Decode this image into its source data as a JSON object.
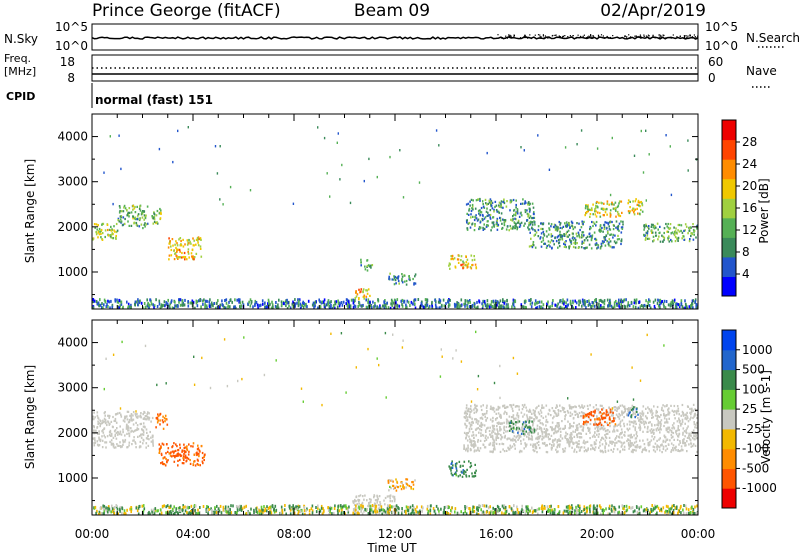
{
  "header": {
    "station": "Prince George (fitACF)",
    "beam": "Beam 09",
    "date": "02/Apr/2019"
  },
  "noise_panel": {
    "left_label": "N.Sky",
    "right_label": "N.Search",
    "ticks": [
      {
        "text": "10^5",
        "value": 100000
      },
      {
        "text": "10^0",
        "value": 1
      }
    ]
  },
  "freq_panel": {
    "left_label_line1": "Freq.",
    "left_label_line2": "[MHz]",
    "left_ticks": [
      18,
      8
    ],
    "right_label": "Nave",
    "right_ticks": [
      60,
      0
    ]
  },
  "cpid": {
    "label": "CPID",
    "text": "normal (fast) 151"
  },
  "colors": {
    "power_scale": [
      "#0000ff",
      "#2255cc",
      "#3a8a5a",
      "#55b055",
      "#a0d040",
      "#f0c800",
      "#ff8c00",
      "#ff4400",
      "#ee0000"
    ],
    "velocity_scale": [
      "#0044ee",
      "#2266cc",
      "#3a8a4a",
      "#66cc33",
      "#c8c8c0",
      "#f2b800",
      "#ff8c00",
      "#ff5500",
      "#ee0000"
    ]
  },
  "chart_data": [
    {
      "type": "heatmap",
      "name": "power",
      "ylabel": "Slant Range [km]",
      "ylim": [
        180,
        4500
      ],
      "yticks": [
        1000,
        2000,
        3000,
        4000
      ],
      "xlim": [
        0,
        24
      ],
      "colorbar": {
        "label": "Power [dB]",
        "range": [
          0,
          32
        ],
        "tick_labels": [
          "28",
          "24",
          "20",
          "16",
          "12",
          "8",
          "4"
        ],
        "tick_values": [
          28,
          24,
          20,
          16,
          12,
          8,
          4
        ]
      },
      "regions": [
        {
          "t0": 0.0,
          "t1": 1.0,
          "r0": 1680,
          "r1": 2050,
          "value": 16
        },
        {
          "t0": 1.0,
          "t1": 2.2,
          "r0": 1950,
          "r1": 2450,
          "value": 12
        },
        {
          "t0": 2.3,
          "t1": 2.7,
          "r0": 2050,
          "r1": 2400,
          "value": 14
        },
        {
          "t0": 3.0,
          "t1": 4.3,
          "r0": 1250,
          "r1": 1750,
          "value": 20
        },
        {
          "t0": 10.6,
          "t1": 11.1,
          "r0": 1000,
          "r1": 1250,
          "value": 10
        },
        {
          "t0": 11.7,
          "t1": 12.8,
          "r0": 700,
          "r1": 950,
          "value": 9
        },
        {
          "t0": 10.3,
          "t1": 11.0,
          "r0": 370,
          "r1": 620,
          "value": 20
        },
        {
          "t0": 14.1,
          "t1": 15.2,
          "r0": 1050,
          "r1": 1350,
          "value": 20
        },
        {
          "t0": 14.8,
          "t1": 17.5,
          "r0": 1900,
          "r1": 2600,
          "value": 10
        },
        {
          "t0": 17.3,
          "t1": 21.0,
          "r0": 1500,
          "r1": 2100,
          "value": 10
        },
        {
          "t0": 19.5,
          "t1": 21.0,
          "r0": 2200,
          "r1": 2550,
          "value": 17
        },
        {
          "t0": 21.2,
          "t1": 21.8,
          "r0": 2250,
          "r1": 2600,
          "value": 18
        },
        {
          "t0": 21.8,
          "t1": 24.0,
          "r0": 1650,
          "r1": 2050,
          "value": 12
        },
        {
          "t0": 0.0,
          "t1": 24.0,
          "r0": 180,
          "r1": 380,
          "value": 8
        }
      ]
    },
    {
      "type": "heatmap",
      "name": "velocity",
      "ylabel": "Slant Range [km]",
      "ylim": [
        180,
        4500
      ],
      "yticks": [
        1000,
        2000,
        3000,
        4000
      ],
      "xlim": [
        0,
        24
      ],
      "xlabel": "Time UT",
      "xticks": [
        "00:00",
        "04:00",
        "08:00",
        "12:00",
        "16:00",
        "20:00",
        "00:00"
      ],
      "xtick_values": [
        0,
        4,
        8,
        12,
        16,
        20,
        24
      ],
      "colorbar": {
        "label": "Velocity [m s-1]",
        "tick_labels": [
          "1000",
          "500",
          "100",
          "25",
          "-25",
          "-100",
          "-500",
          "-1000"
        ],
        "tick_values": [
          1000,
          500,
          100,
          25,
          -25,
          -100,
          -500,
          -1000
        ]
      },
      "regions": [
        {
          "t0": 0.0,
          "t1": 2.4,
          "r0": 1650,
          "r1": 2450,
          "value": 0
        },
        {
          "t0": 2.6,
          "t1": 4.5,
          "r0": 1250,
          "r1": 1750,
          "value": -400
        },
        {
          "t0": 2.5,
          "t1": 3.0,
          "r0": 2050,
          "r1": 2400,
          "value": -300
        },
        {
          "t0": 10.3,
          "t1": 12.0,
          "r0": 180,
          "r1": 600,
          "value": 0
        },
        {
          "t0": 11.7,
          "t1": 12.8,
          "r0": 700,
          "r1": 950,
          "value": -120
        },
        {
          "t0": 14.1,
          "t1": 15.2,
          "r0": 1000,
          "r1": 1350,
          "value": 200
        },
        {
          "t0": 14.7,
          "t1": 24.0,
          "r0": 1550,
          "r1": 2600,
          "value": 0
        },
        {
          "t0": 16.5,
          "t1": 17.5,
          "r0": 1950,
          "r1": 2250,
          "value": 200
        },
        {
          "t0": 19.4,
          "t1": 20.7,
          "r0": 2150,
          "r1": 2500,
          "value": -400
        },
        {
          "t0": 21.2,
          "t1": 21.6,
          "r0": 2300,
          "r1": 2550,
          "value": 300
        },
        {
          "t0": 0.0,
          "t1": 24.0,
          "r0": 180,
          "r1": 380,
          "value": 50
        }
      ]
    }
  ]
}
